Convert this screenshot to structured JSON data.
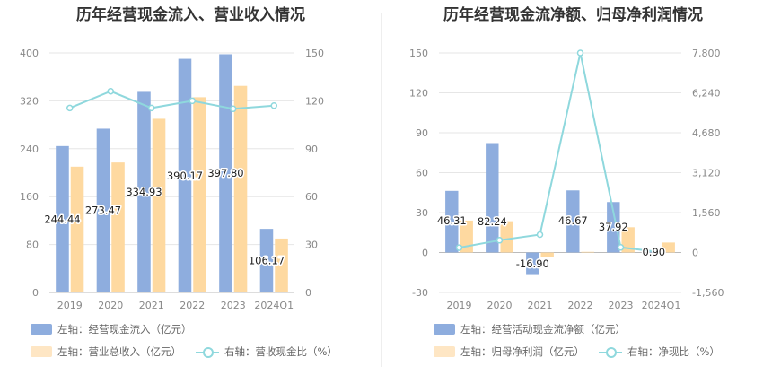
{
  "left": {
    "title": "历年经营现金流入、营业收入情况",
    "legend": {
      "a": "左轴：经营现金流入（亿元）",
      "b": "左轴：营业总收入（亿元）",
      "c": "右轴：营收现金比（%）"
    }
  },
  "right": {
    "title": "历年经营现金流净额、归母净利润情况",
    "legend": {
      "a": "左轴：经营活动现金流净额（亿元）",
      "b": "左轴：归母净利润（亿元）",
      "c": "右轴：净现比（%）"
    }
  },
  "colors": {
    "blue": "#8eadde",
    "orange": "#fed9a0",
    "line": "#8fd8dd"
  },
  "chart_data": [
    {
      "type": "bar",
      "title": "历年经营现金流入、营业收入情况",
      "categories": [
        "2019",
        "2020",
        "2021",
        "2022",
        "2023",
        "2024Q1"
      ],
      "series": [
        {
          "name": "左轴：经营现金流入（亿元）",
          "axis": "left",
          "type": "bar",
          "values": [
            244.44,
            273.47,
            334.93,
            390.17,
            397.8,
            106.17
          ],
          "labels": [
            "244.44",
            "273.47",
            "334.93",
            "390.17",
            "397.80",
            "106.17"
          ]
        },
        {
          "name": "左轴：营业总收入（亿元）",
          "axis": "left",
          "type": "bar",
          "values": [
            210,
            217,
            290,
            326,
            345,
            90
          ]
        },
        {
          "name": "右轴：营收现金比（%）",
          "axis": "right",
          "type": "line",
          "values": [
            115.5,
            126,
            115.5,
            120,
            115,
            117
          ]
        }
      ],
      "left_axis": {
        "min": 0,
        "max": 400,
        "ticks": [
          "0",
          "80",
          "160",
          "240",
          "320",
          "400"
        ]
      },
      "right_axis": {
        "min": 0,
        "max": 150,
        "ticks": [
          "0",
          "30",
          "60",
          "90",
          "120",
          "150"
        ]
      },
      "grid": true,
      "legend_position": "bottom"
    },
    {
      "type": "bar",
      "title": "历年经营现金流净额、归母净利润情况",
      "categories": [
        "2019",
        "2020",
        "2021",
        "2022",
        "2023",
        "2024Q1"
      ],
      "series": [
        {
          "name": "左轴：经营活动现金流净额（亿元）",
          "axis": "left",
          "type": "bar",
          "values": [
            46.31,
            82.24,
            -16.9,
            46.67,
            37.92,
            0.9
          ],
          "labels": [
            "46.31",
            "82.24",
            "-16.90",
            "46.67",
            "37.92",
            "0.90"
          ]
        },
        {
          "name": "左轴：归母净利润（亿元）",
          "axis": "left",
          "type": "bar",
          "values": [
            24,
            23.5,
            -3.5,
            0.5,
            19,
            7.5
          ]
        },
        {
          "name": "右轴：净现比（%）",
          "axis": "right",
          "type": "line",
          "values": [
            190,
            480,
            700,
            7800,
            200,
            12
          ]
        }
      ],
      "left_axis": {
        "min": -30,
        "max": 150,
        "ticks": [
          "-30",
          "0",
          "30",
          "60",
          "90",
          "120",
          "150"
        ]
      },
      "right_axis": {
        "min": -1560,
        "max": 7800,
        "ticks": [
          "-1,560",
          "0",
          "1,560",
          "3,120",
          "4,680",
          "6,240",
          "7,800"
        ]
      },
      "grid": true,
      "legend_position": "bottom"
    }
  ]
}
